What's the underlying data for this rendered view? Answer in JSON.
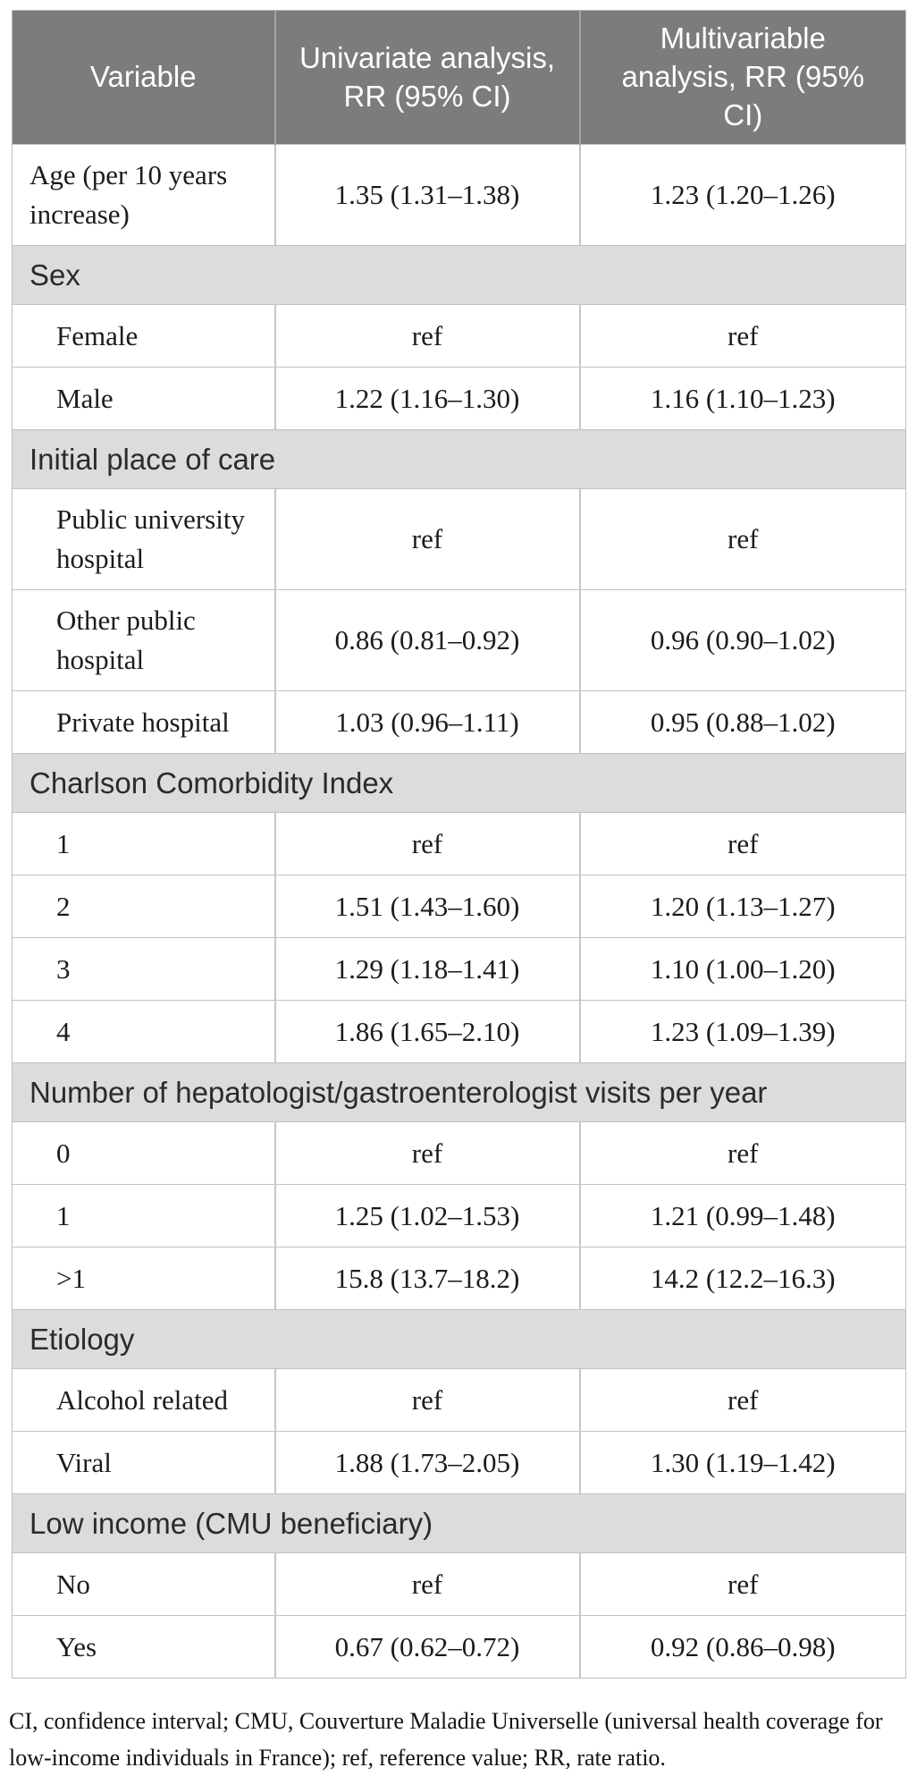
{
  "colors": {
    "header_background": "#7c7c7c",
    "header_text": "#ffffff",
    "section_background": "#dcdcdc",
    "body_text": "#1b1b1b",
    "border": "#c2c2c2"
  },
  "table": {
    "columns": [
      "Variable",
      "Univariate analysis, RR (95% CI)",
      "Multivariable analysis, RR (95% CI)"
    ],
    "rows": [
      {
        "type": "data",
        "indent": false,
        "label": "Age (per 10 years increase)",
        "univariate": "1.35 (1.31–1.38)",
        "multivariable": "1.23 (1.20–1.26)"
      },
      {
        "type": "section",
        "label": "Sex"
      },
      {
        "type": "data",
        "indent": true,
        "label": "Female",
        "univariate": "ref",
        "multivariable": "ref"
      },
      {
        "type": "data",
        "indent": true,
        "label": "Male",
        "univariate": "1.22 (1.16–1.30)",
        "multivariable": "1.16 (1.10–1.23)"
      },
      {
        "type": "section",
        "label": "Initial place of care"
      },
      {
        "type": "data",
        "indent": true,
        "label": "Public university hospital",
        "univariate": "ref",
        "multivariable": "ref"
      },
      {
        "type": "data",
        "indent": true,
        "label": "Other public hospital",
        "univariate": "0.86 (0.81–0.92)",
        "multivariable": "0.96 (0.90–1.02)"
      },
      {
        "type": "data",
        "indent": true,
        "label": "Private hospital",
        "univariate": "1.03 (0.96–1.11)",
        "multivariable": "0.95 (0.88–1.02)"
      },
      {
        "type": "section",
        "label": "Charlson Comorbidity Index"
      },
      {
        "type": "data",
        "indent": true,
        "label": "1",
        "univariate": "ref",
        "multivariable": "ref"
      },
      {
        "type": "data",
        "indent": true,
        "label": "2",
        "univariate": "1.51 (1.43–1.60)",
        "multivariable": "1.20 (1.13–1.27)"
      },
      {
        "type": "data",
        "indent": true,
        "label": "3",
        "univariate": "1.29 (1.18–1.41)",
        "multivariable": "1.10 (1.00–1.20)"
      },
      {
        "type": "data",
        "indent": true,
        "label": "4",
        "univariate": "1.86 (1.65–2.10)",
        "multivariable": "1.23 (1.09–1.39)"
      },
      {
        "type": "section",
        "label": "Number of hepatologist/gastroenterologist visits per year"
      },
      {
        "type": "data",
        "indent": true,
        "label": "0",
        "univariate": "ref",
        "multivariable": "ref"
      },
      {
        "type": "data",
        "indent": true,
        "label": "1",
        "univariate": "1.25 (1.02–1.53)",
        "multivariable": "1.21 (0.99–1.48)"
      },
      {
        "type": "data",
        "indent": true,
        "label": ">1",
        "univariate": "15.8 (13.7–18.2)",
        "multivariable": "14.2 (12.2–16.3)"
      },
      {
        "type": "section",
        "label": "Etiology"
      },
      {
        "type": "data",
        "indent": true,
        "label": "Alcohol related",
        "univariate": "ref",
        "multivariable": "ref"
      },
      {
        "type": "data",
        "indent": true,
        "label": "Viral",
        "univariate": "1.88 (1.73–2.05)",
        "multivariable": "1.30 (1.19–1.42)"
      },
      {
        "type": "section",
        "label": "Low income (CMU beneficiary)"
      },
      {
        "type": "data",
        "indent": true,
        "label": "No",
        "univariate": "ref",
        "multivariable": "ref"
      },
      {
        "type": "data",
        "indent": true,
        "label": "Yes",
        "univariate": "0.67 (0.62–0.72)",
        "multivariable": "0.92 (0.86–0.98)"
      }
    ],
    "footnote": "CI, confidence interval; CMU, Couverture Maladie Universelle (universal health coverage for low-income individuals in France); ref, reference value; RR, rate ratio."
  }
}
